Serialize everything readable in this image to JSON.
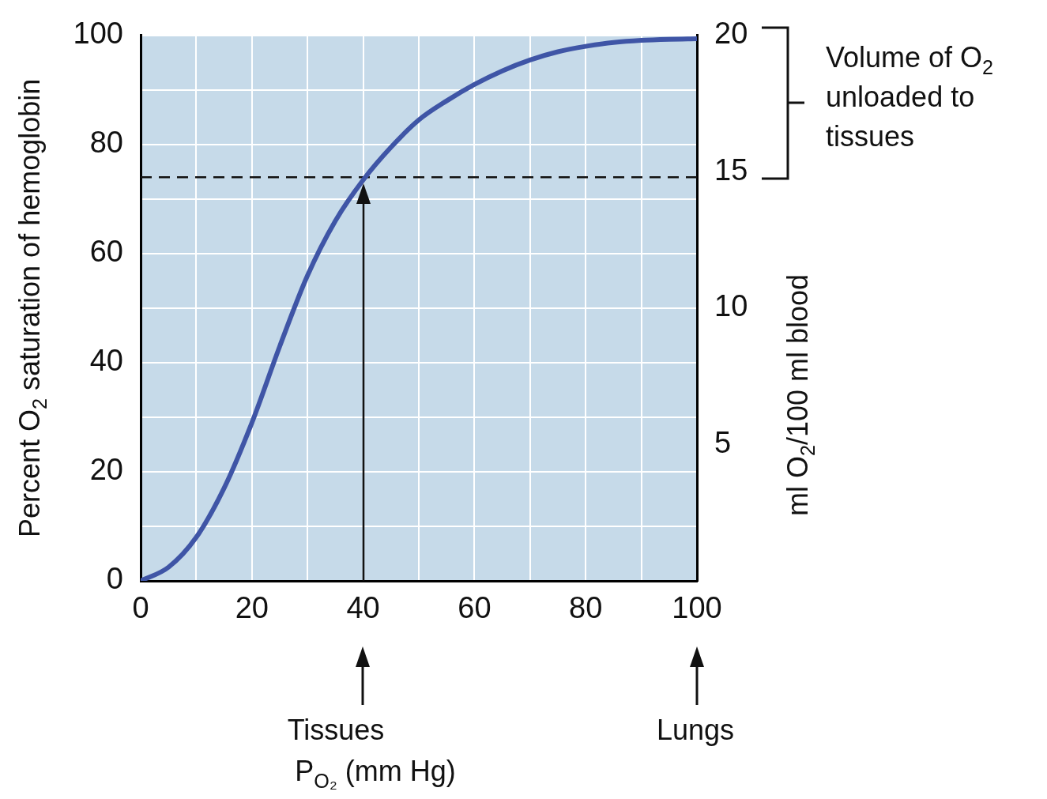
{
  "chart_data": {
    "type": "line",
    "x": [
      0,
      5,
      10,
      15,
      20,
      25,
      30,
      35,
      40,
      45,
      50,
      55,
      60,
      65,
      70,
      75,
      80,
      85,
      90,
      95,
      100
    ],
    "series": [
      {
        "color": "#3f55a6",
        "values": [
          0,
          2.5,
          8,
          17,
          29,
          43,
          56,
          66,
          73.5,
          79.5,
          84.5,
          88,
          91,
          93.5,
          95.5,
          97,
          98,
          98.7,
          99.1,
          99.3,
          99.4
        ]
      }
    ],
    "xlim": [
      0,
      100
    ],
    "ylim": [
      0,
      100
    ],
    "y2lim": [
      0,
      20
    ],
    "xticks": [
      0,
      {
        "value": 10,
        "label": null
      },
      20,
      {
        "value": 30,
        "label": null
      },
      40,
      {
        "value": 50,
        "label": null
      },
      60,
      {
        "value": 70,
        "label": null
      },
      80,
      {
        "value": 90,
        "label": null
      },
      100
    ],
    "yticks": [
      0,
      {
        "value": 10,
        "label": null
      },
      20,
      {
        "value": 30,
        "label": null
      },
      40,
      {
        "value": 50,
        "label": null
      },
      60,
      {
        "value": 70,
        "label": null
      },
      80,
      {
        "value": 90,
        "label": null
      },
      100
    ],
    "y2ticks": [
      5,
      10,
      15,
      20
    ],
    "xlabel": "P$_{O₂}$ (mm Hg)",
    "ylabel": "Percent O$_{2}$ saturation of hemoglobin",
    "y2label": "ml O$_{2}$/100 ml blood",
    "ref_lines": [
      {
        "axis": "y",
        "value": 74,
        "line_style": "dashed"
      },
      {
        "axis": "x",
        "value": 40,
        "line_style": "solid"
      }
    ],
    "annotations": [
      "Volume of O$_{2}$ unloaded to tissues",
      "Tissues",
      "Lungs"
    ],
    "grid": true,
    "legend": false,
    "marker": "none",
    "line_style": "solid"
  }
}
